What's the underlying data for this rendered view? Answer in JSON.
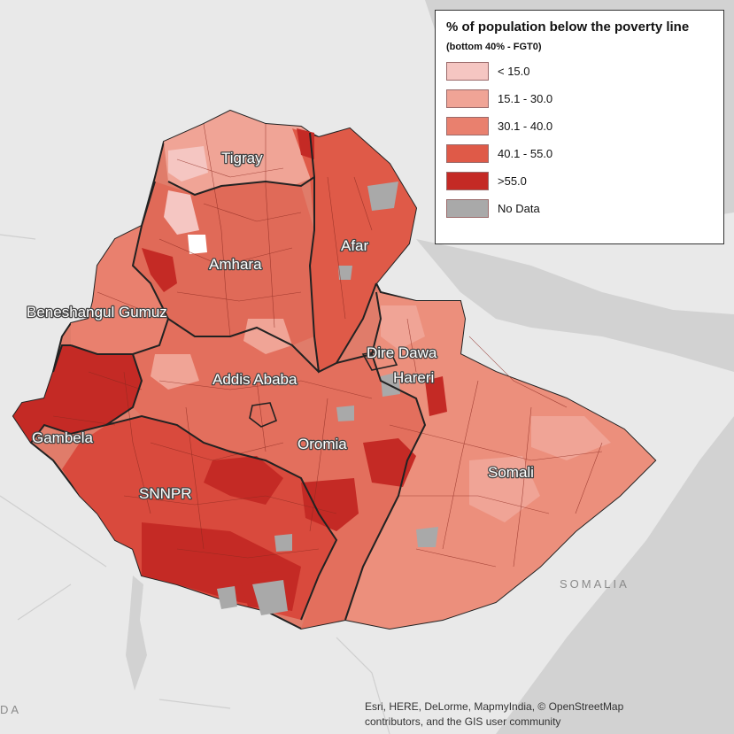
{
  "map": {
    "country_label": "SOMALIA",
    "edge_label": "DA",
    "regions": [
      {
        "id": "tigray",
        "name": "Tigray"
      },
      {
        "id": "afar",
        "name": "Afar"
      },
      {
        "id": "amhara",
        "name": "Amhara"
      },
      {
        "id": "beneshangul",
        "name": "Beneshangul Gumuz"
      },
      {
        "id": "dire-dawa",
        "name": "Dire Dawa"
      },
      {
        "id": "addis",
        "name": "Addis Ababa"
      },
      {
        "id": "hareri",
        "name": "Hareri"
      },
      {
        "id": "gambela",
        "name": "Gambela"
      },
      {
        "id": "oromia",
        "name": "Oromia"
      },
      {
        "id": "somali",
        "name": "Somali"
      },
      {
        "id": "snnpr",
        "name": "SNNPR"
      }
    ]
  },
  "legend": {
    "title": "% of population below the poverty line",
    "subtitle": "(bottom 40% - FGT0)",
    "items": [
      {
        "label": "< 15.0",
        "color": "#f5c6c2"
      },
      {
        "label": "15.1 - 30.0",
        "color": "#f0a496"
      },
      {
        "label": "30.1 - 40.0",
        "color": "#e9806e"
      },
      {
        "label": "40.1 - 55.0",
        "color": "#df5a48"
      },
      {
        "label": ">55.0",
        "color": "#c42a25"
      },
      {
        "label": "No Data",
        "color": "#a9a9a9"
      }
    ]
  },
  "attribution": {
    "line1": "Esri, HERE, DeLorme, MapmyIndia, © OpenStreetMap",
    "line2": "contributors, and the GIS user community"
  }
}
